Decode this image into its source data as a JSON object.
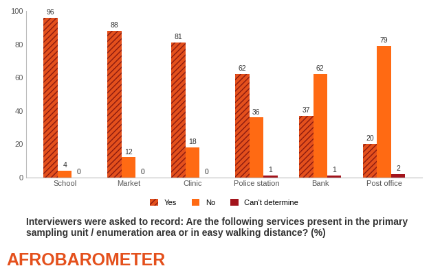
{
  "chart_data": {
    "type": "bar",
    "categories": [
      "School",
      "Market",
      "Clinic",
      "Police station",
      "Bank",
      "Post office"
    ],
    "series": [
      {
        "name": "Yes",
        "color": "#e4501c",
        "values": [
          96,
          88,
          81,
          62,
          37,
          20
        ]
      },
      {
        "name": "No",
        "color": "#ff6a13",
        "values": [
          4,
          12,
          18,
          36,
          62,
          79
        ]
      },
      {
        "name": "Can't determine",
        "color": "#a3141c",
        "values": [
          0,
          0,
          0,
          1,
          1,
          2
        ]
      }
    ],
    "ylim": [
      0,
      100
    ],
    "yticks": [
      0,
      20,
      40,
      60,
      80,
      100
    ],
    "grid": false,
    "legend": "bottom",
    "data_labels": true,
    "annotations": [
      "Interviewers were asked to record: Are the following services present in the primary sampling unit / enumeration area or in easy walking distance? (%)",
      "AFROBAROMETER"
    ]
  }
}
